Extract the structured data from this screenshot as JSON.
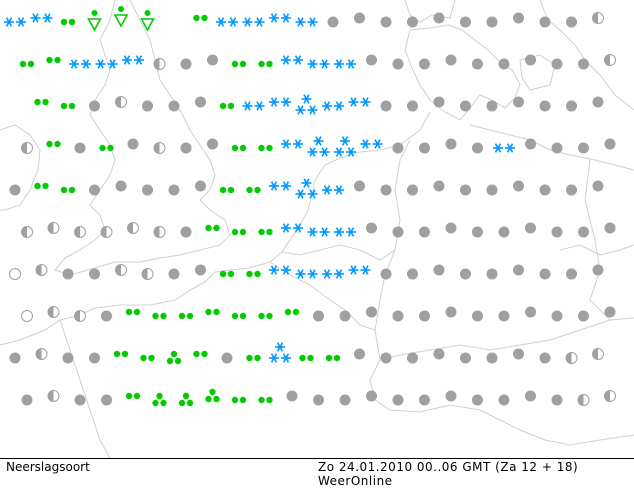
{
  "footer": {
    "legend_label": "Neerslagsoort",
    "datetime": "Zo 24.01.2010 00..06 GMT (Za 12 + 18)",
    "source": "WeerOnline"
  },
  "colors": {
    "rain": "#00cc00",
    "snow": "#0099ff",
    "dry": "#a0a0a0",
    "coast": "#d0d0d0",
    "border": "#000000"
  },
  "symbol_legend": {
    "D": "dry-dot",
    "H": "half-dot",
    "O": "open-circle",
    "R": "rain-double-dot",
    "T": "rain-triple-dot",
    "V": "shower-triangle",
    "S": "snow-double-asterisk",
    "W": "snow-triple-asterisk"
  },
  "grid": [
    "SSRVVV_RSSSSDDDDDDDDDDH",
    "RRSSSHDDRRSSSDDDDDDDDDH",
    "_RRDHDDDRSSWSSDDDDDDDDD",
    "HRDRDHDDRRSWWSDDDDSDDDD",
    "DRRDDDDDRRSWSDDDDDDDDDD",
    "HHHHHHDRRRSSSDDDDDDDDDD",
    "OHDDHHDDRRSSSSDDDDDDDDD",
    "OHHDRRRRRRRDDDDDDDDDDDD",
    "DHDDRRTRDRWRRDDDDDDDDHH",
    "DHDDRTTTRRDDDDDDDDDDDHH"
  ]
}
